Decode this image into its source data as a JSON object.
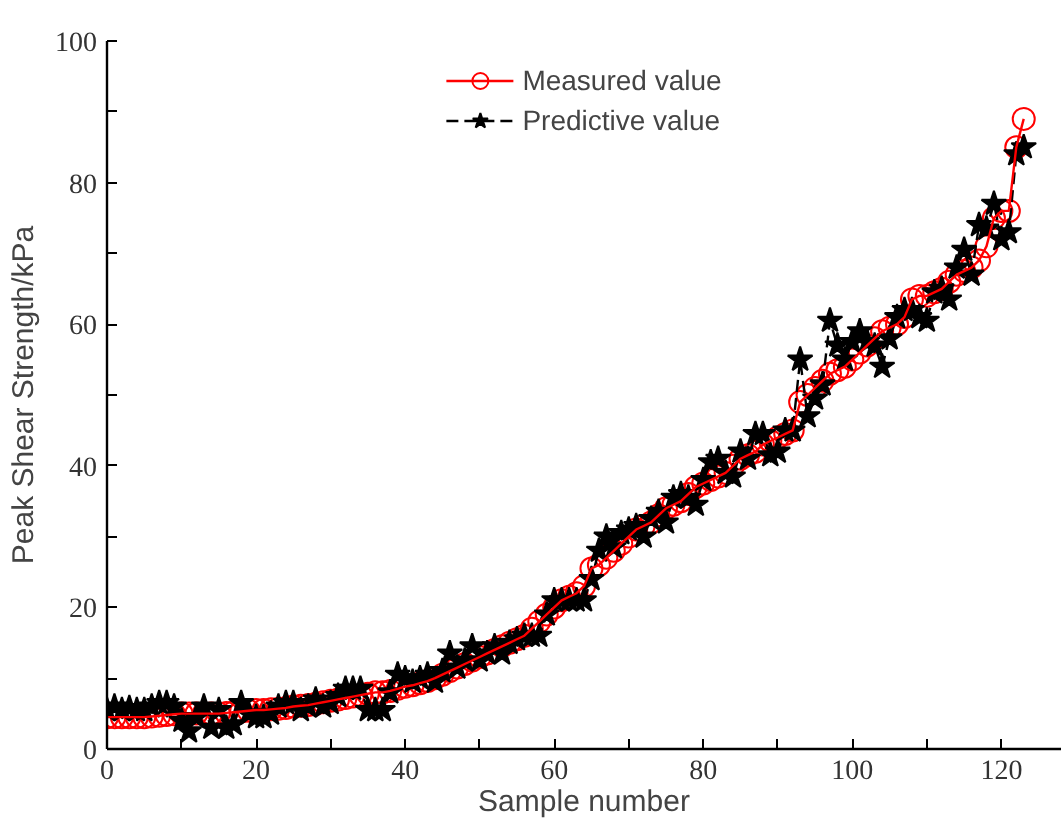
{
  "chart_data": {
    "type": "line",
    "xlabel": "Sample number",
    "ylabel": "Peak Shear Strength/kPa",
    "xlim": [
      0,
      128
    ],
    "ylim": [
      0,
      100
    ],
    "xticks": [
      0,
      {
        "value": 10,
        "label": null
      },
      20,
      {
        "value": 30,
        "label": null
      },
      40,
      {
        "value": 50,
        "label": null
      },
      60,
      {
        "value": 70,
        "label": null
      },
      80,
      {
        "value": 90,
        "label": null
      },
      100,
      {
        "value": 110,
        "label": null
      },
      120
    ],
    "yticks": [
      0,
      {
        "value": 10,
        "label": null
      },
      20,
      {
        "value": 30,
        "label": null
      },
      40,
      {
        "value": 50,
        "label": null
      },
      60,
      {
        "value": 70,
        "label": null
      },
      80,
      {
        "value": 90,
        "label": null
      },
      100
    ],
    "grid": false,
    "legend": "top",
    "x": [
      0,
      1,
      2,
      3,
      4,
      5,
      6,
      7,
      8,
      9,
      10,
      11,
      12,
      13,
      14,
      15,
      16,
      17,
      18,
      19,
      20,
      21,
      22,
      23,
      24,
      25,
      26,
      27,
      28,
      29,
      30,
      31,
      32,
      33,
      34,
      35,
      36,
      37,
      38,
      39,
      40,
      41,
      42,
      43,
      44,
      45,
      46,
      47,
      48,
      49,
      50,
      51,
      52,
      53,
      54,
      55,
      56,
      57,
      58,
      59,
      60,
      61,
      62,
      63,
      64,
      65,
      66,
      67,
      68,
      69,
      70,
      71,
      72,
      73,
      74,
      75,
      76,
      77,
      78,
      79,
      80,
      81,
      82,
      83,
      84,
      85,
      86,
      87,
      88,
      89,
      90,
      91,
      92,
      93,
      94,
      95,
      96,
      97,
      98,
      99,
      100,
      101,
      102,
      103,
      104,
      105,
      106,
      107,
      108,
      109,
      110,
      111,
      112,
      113,
      114,
      115,
      116,
      117,
      118,
      119,
      120,
      121,
      122,
      123
    ],
    "series": [
      {
        "name": "Measured value",
        "color": "#ff0000",
        "marker": "circle",
        "line_style": "solid",
        "values": [
          4.5,
          4.5,
          4.5,
          4.5,
          4.5,
          4.5,
          4.6,
          4.7,
          4.8,
          4.9,
          5,
          5,
          5,
          5,
          5,
          5,
          5.1,
          5.2,
          5.3,
          5.4,
          5.5,
          5.5,
          5.6,
          5.7,
          5.8,
          6,
          6.1,
          6.2,
          6.4,
          6.6,
          6.8,
          7,
          7.2,
          7.4,
          7.6,
          7.8,
          8,
          8,
          8.2,
          8.5,
          8.8,
          9,
          9.3,
          9.6,
          10,
          10.5,
          11,
          11.5,
          12,
          12.5,
          13,
          13.5,
          14,
          14.5,
          15,
          15.5,
          16,
          17,
          18,
          19,
          20,
          21,
          21.5,
          22,
          23,
          25.5,
          26,
          27,
          28,
          29,
          30,
          31,
          31.5,
          32,
          33,
          34,
          34.5,
          35,
          36,
          37,
          37.5,
          38,
          38.5,
          39,
          40,
          41,
          41.5,
          42,
          43,
          43.5,
          44,
          44.5,
          45,
          49,
          50,
          51,
          52,
          53,
          53.5,
          54,
          55,
          56,
          57,
          58,
          59,
          59.5,
          60,
          61,
          63.5,
          64,
          64,
          64.5,
          65,
          66,
          67,
          67.5,
          68,
          69,
          71,
          75,
          76,
          76,
          85,
          89
        ]
      },
      {
        "name": "Predictive value",
        "color": "#000000",
        "marker": "star",
        "line_style": "dashed",
        "values": [
          5.5,
          6,
          5.5,
          5.8,
          5.5,
          5.5,
          6,
          6.5,
          6.5,
          6,
          4,
          2.5,
          4.5,
          6,
          3,
          5.5,
          3,
          3.5,
          6.5,
          5,
          4.5,
          4.5,
          5,
          6,
          6.5,
          6.5,
          5.5,
          6,
          7,
          6,
          6.5,
          7.5,
          8.5,
          8.5,
          8.5,
          5.5,
          5.5,
          5.5,
          8,
          10.5,
          10,
          9.5,
          10,
          10.5,
          9.5,
          11,
          13.5,
          11.5,
          12.5,
          14.5,
          12.5,
          13.5,
          14.5,
          13.5,
          15,
          15.5,
          16,
          16,
          16,
          19,
          21,
          21,
          21,
          21,
          21,
          24,
          28,
          30,
          28.5,
          30.5,
          31,
          31.5,
          30,
          32.5,
          33.5,
          32,
          35.5,
          36,
          35.5,
          34.5,
          38,
          40.5,
          41,
          39,
          38.5,
          42,
          41,
          44.5,
          44.5,
          41.5,
          42,
          45,
          45,
          55,
          47,
          49.5,
          51.5,
          60.5,
          57,
          55,
          57.5,
          59,
          57.5,
          57,
          54,
          58,
          61,
          62,
          62,
          61,
          60.5,
          64.5,
          65,
          63.5,
          68,
          70.5,
          67,
          74,
          73.5,
          77,
          72,
          73,
          84,
          85
        ]
      }
    ]
  }
}
